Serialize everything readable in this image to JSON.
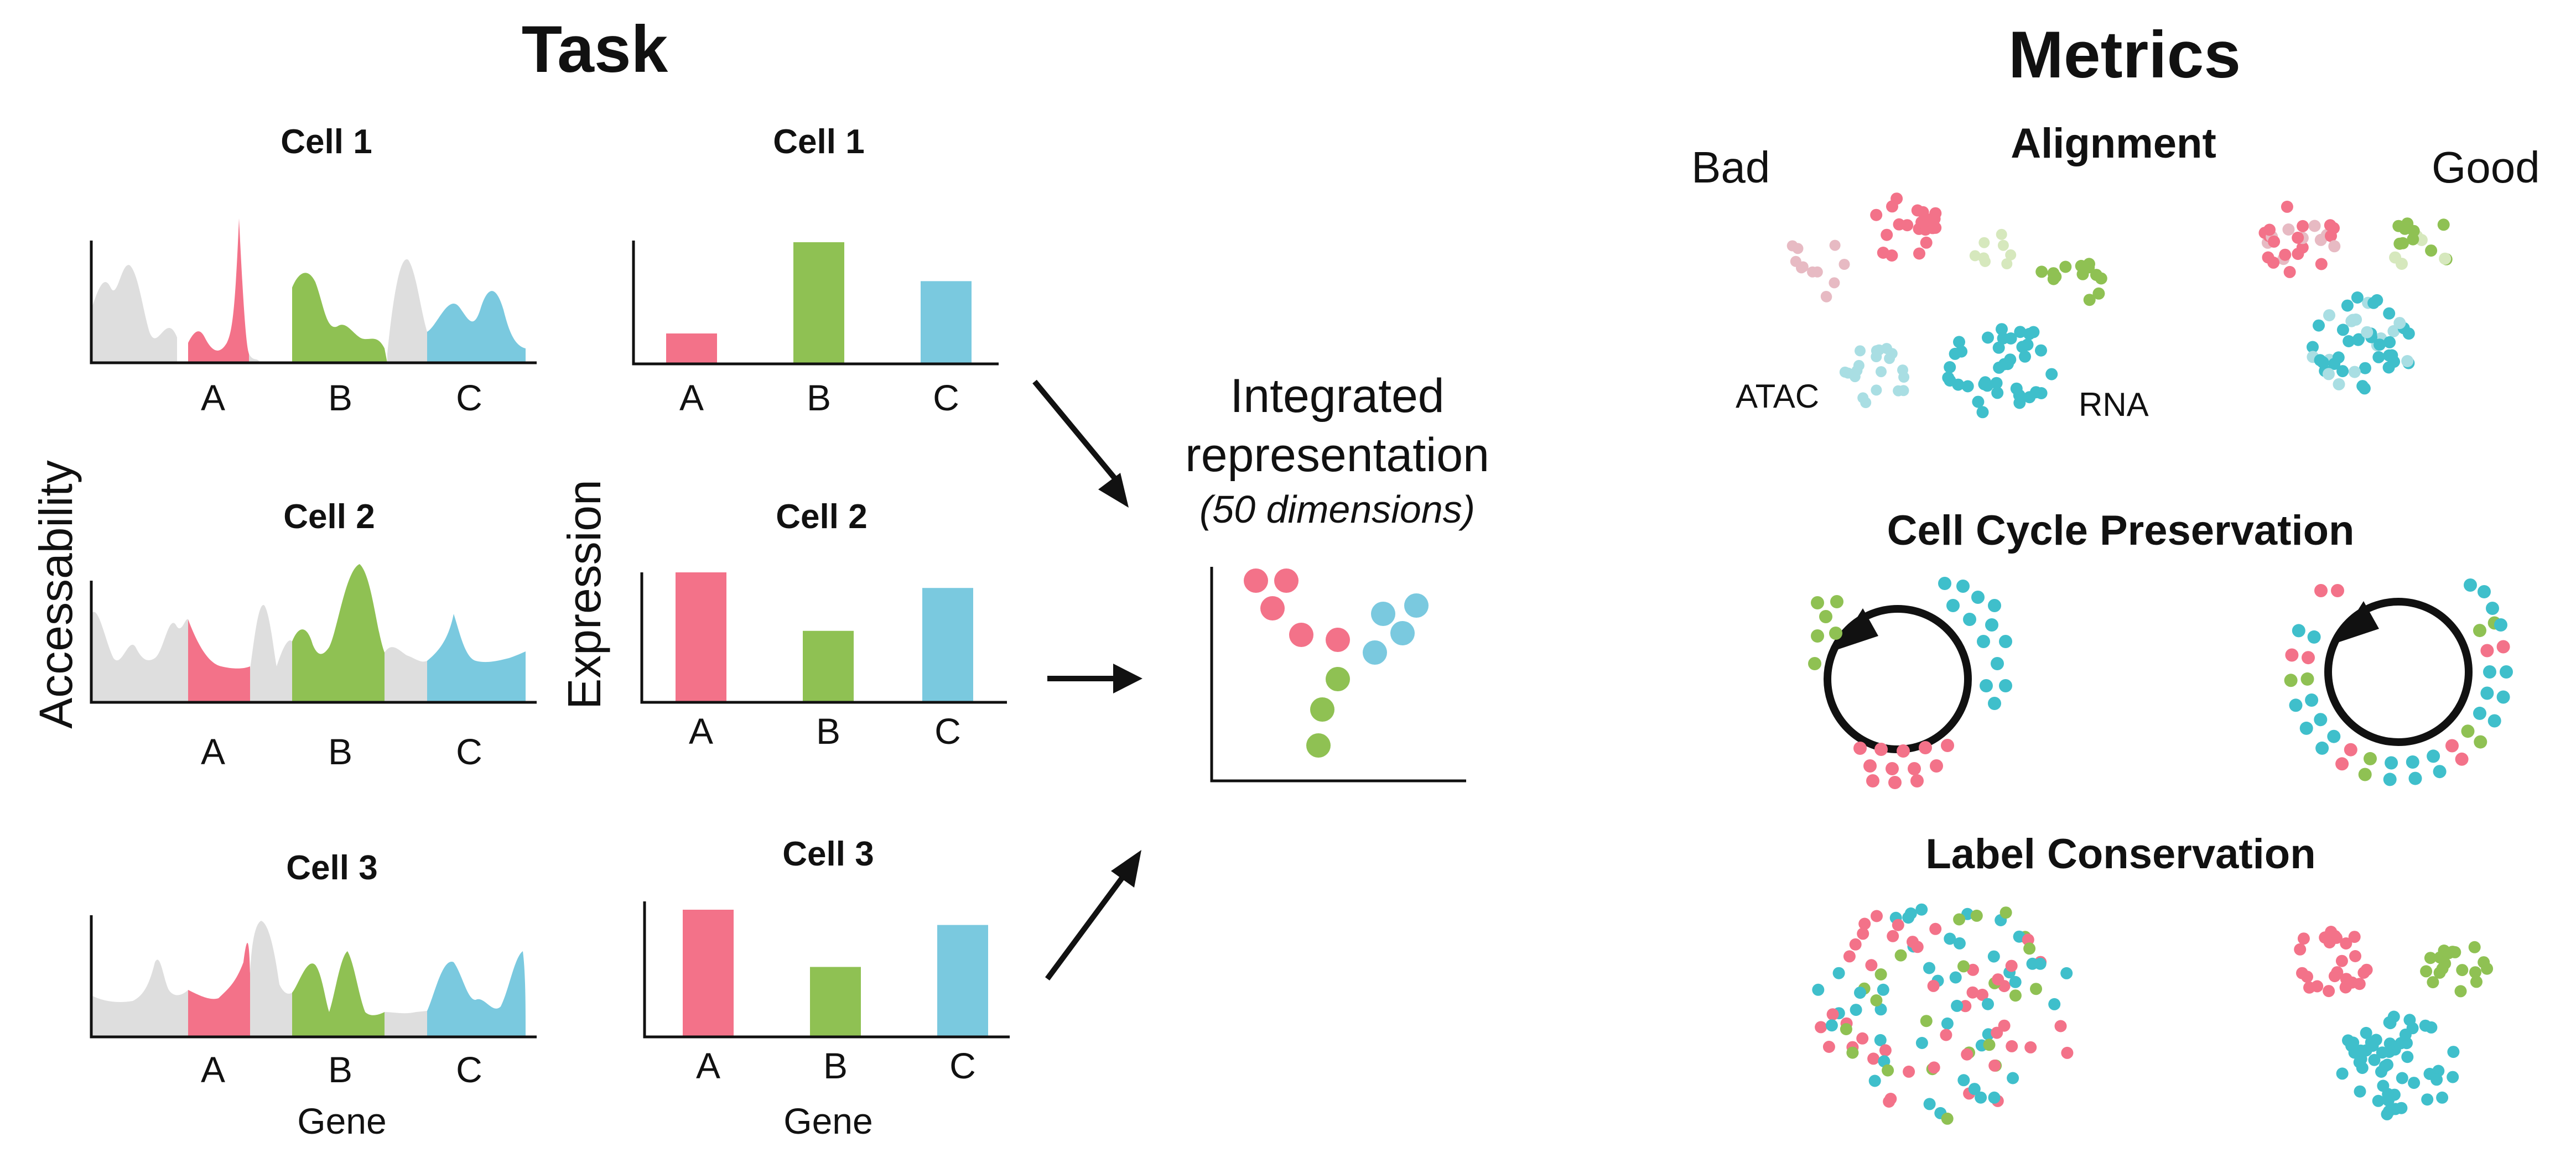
{
  "colors": {
    "red": "#f37289",
    "green": "#8fc153",
    "blue": "#7ac9df",
    "teal": "#3fbfcb",
    "grey": "#dedede",
    "fadedRed": "#e7bac3",
    "fadedGreen": "#d6e8bd",
    "fadedBlue": "#a9dee3",
    "dark": "#111111"
  },
  "task": {
    "title": "Task",
    "atac_axis_label": "Accessability",
    "rna_axis_label": "Expression",
    "gene_label": "Gene",
    "genes": [
      "A",
      "B",
      "C"
    ],
    "cells": [
      {
        "title": "Cell 1",
        "expression": [
          0.25,
          1.0,
          0.68
        ]
      },
      {
        "title": "Cell 2",
        "expression": [
          1.0,
          0.55,
          0.88
        ]
      },
      {
        "title": "Cell 3",
        "expression": [
          1.0,
          0.55,
          0.88
        ]
      }
    ]
  },
  "integrated": {
    "title_line1": "Integrated",
    "title_line2": "representation",
    "subtitle": "(50 dimensions)"
  },
  "metrics": {
    "title": "Metrics",
    "bad_label": "Bad",
    "good_label": "Good",
    "alignment": {
      "title": "Alignment",
      "atac_label": "ATAC",
      "rna_label": "RNA"
    },
    "cell_cycle": {
      "title": "Cell Cycle Preservation"
    },
    "label_conservation": {
      "title": "Label Conservation"
    }
  }
}
